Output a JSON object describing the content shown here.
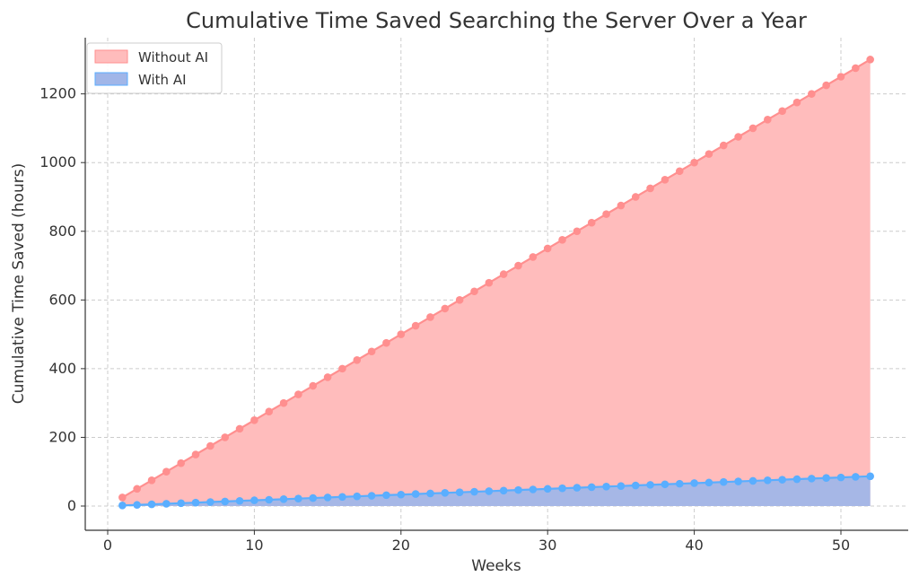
{
  "chart_data": {
    "type": "area",
    "title": "Cumulative Time Saved Searching the Server Over a Year",
    "xlabel": "Weeks",
    "ylabel": "Cumulative Time Saved (hours)",
    "xlim": [
      0,
      52
    ],
    "ylim": [
      0,
      1300
    ],
    "x_ticks": [
      0,
      10,
      20,
      30,
      40,
      50
    ],
    "y_ticks": [
      0,
      200,
      400,
      600,
      800,
      1000,
      1200
    ],
    "grid": true,
    "legend_position": "top-left",
    "x": [
      1,
      2,
      3,
      4,
      5,
      6,
      7,
      8,
      9,
      10,
      11,
      12,
      13,
      14,
      15,
      16,
      17,
      18,
      19,
      20,
      21,
      22,
      23,
      24,
      25,
      26,
      27,
      28,
      29,
      30,
      31,
      32,
      33,
      34,
      35,
      36,
      37,
      38,
      39,
      40,
      41,
      42,
      43,
      44,
      45,
      46,
      47,
      48,
      49,
      50,
      51,
      52
    ],
    "series": [
      {
        "name": "Without AI",
        "color": "#ff8f8f",
        "fill": "#ffbcbc",
        "values": [
          25,
          50,
          75,
          100,
          125,
          150,
          175,
          200,
          225,
          250,
          275,
          300,
          325,
          350,
          375,
          400,
          425,
          450,
          475,
          500,
          525,
          550,
          575,
          600,
          625,
          650,
          675,
          700,
          725,
          750,
          775,
          800,
          825,
          850,
          875,
          900,
          925,
          950,
          975,
          1000,
          1025,
          1050,
          1075,
          1100,
          1125,
          1150,
          1175,
          1200,
          1225,
          1250,
          1275,
          1300
        ]
      },
      {
        "name": "With AI",
        "color": "#5aaeff",
        "fill": "#a1b6e8",
        "values": [
          1.7,
          3.3,
          5,
          6.7,
          8.3,
          10,
          11.7,
          13.3,
          15,
          16.7,
          18.3,
          20,
          21.7,
          23.3,
          25,
          26.7,
          28.3,
          30,
          31.7,
          33.3,
          35,
          36.7,
          38.3,
          40,
          41.7,
          43.3,
          45,
          46.7,
          48.3,
          50,
          51.7,
          53.3,
          55,
          56.7,
          58.3,
          60,
          61.7,
          63.3,
          65,
          66.7,
          68.3,
          70,
          71.7,
          73.3,
          75,
          76.7,
          78.3,
          80,
          81.7,
          83.3,
          85,
          86.7
        ]
      }
    ]
  }
}
